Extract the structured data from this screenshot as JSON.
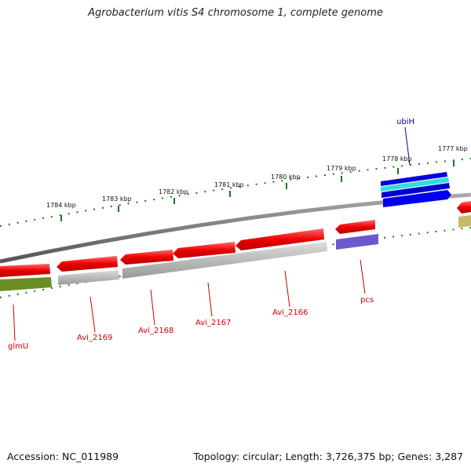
{
  "header": {
    "title": "Agrobacterium vitis S4 chromosome 1, complete genome"
  },
  "footer": {
    "accession": "Accession: NC_011989",
    "topology": "Topology: circular; Length: 3,726,375 bp; Genes: 3,287"
  },
  "ticks": [
    "1784 kbp",
    "1783 kbp",
    "1782 kbp",
    "1781 kbp",
    "1780 kbp",
    "1779 kbp",
    "1778 kbp",
    "1777 kbp"
  ],
  "genes": [
    {
      "name": "glmU",
      "color": "#cc0000"
    },
    {
      "name": "Avi_2169",
      "color": "#cc0000"
    },
    {
      "name": "Avi_2168",
      "color": "#cc0000"
    },
    {
      "name": "Avi_2167",
      "color": "#cc0000"
    },
    {
      "name": "Avi_2166",
      "color": "#cc0000"
    },
    {
      "name": "pcs",
      "color": "#cc0000"
    },
    {
      "name": "ubiH",
      "color": "#000099"
    }
  ],
  "colors": {
    "cds": "#ee0000",
    "gray_feature": "#b3b3b3",
    "backbone": "#7a7a7a",
    "tick": "#1a7a1a",
    "olive": "#6b8e23",
    "khaki": "#c8b96a",
    "purple": "#6a5acd",
    "blue": "#0000ee",
    "cyan": "#33dddd"
  }
}
